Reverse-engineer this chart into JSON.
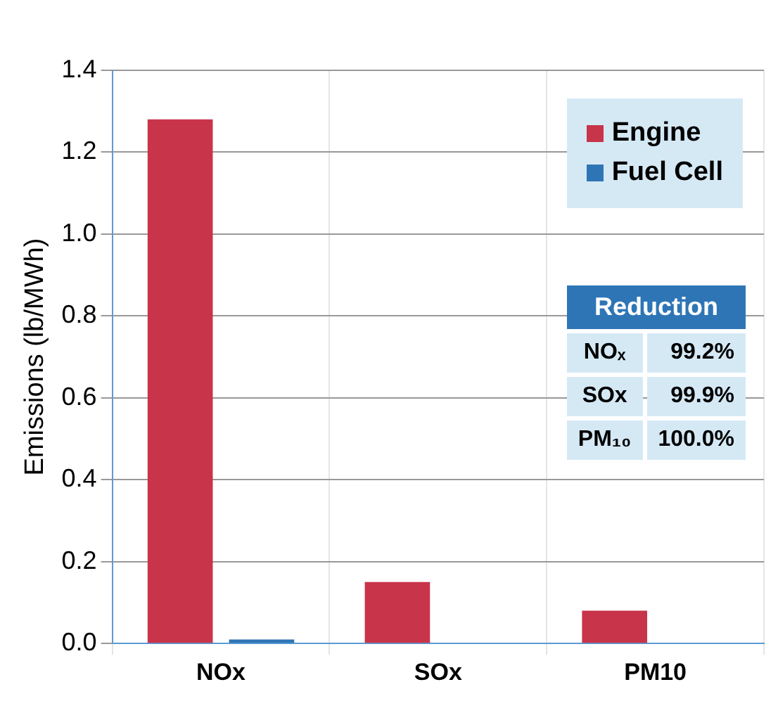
{
  "chart_data": {
    "type": "bar",
    "ylabel": "Emissions (lb/MWh)",
    "categories": [
      "NOx",
      "SOx",
      "PM10"
    ],
    "series": [
      {
        "name": "Engine",
        "color": "#c8344a",
        "values": [
          1.28,
          0.15,
          0.08
        ]
      },
      {
        "name": "Fuel Cell",
        "color": "#2e75b6",
        "values": [
          0.01,
          0,
          0
        ]
      }
    ],
    "ylim": [
      0,
      1.4
    ],
    "yticks": [
      {
        "value": 0,
        "label": "0.0"
      },
      {
        "value": 0.2,
        "label": "0.2"
      },
      {
        "value": 0.4,
        "label": "0.4"
      },
      {
        "value": 0.6,
        "label": "0.6"
      },
      {
        "value": 0.8,
        "label": "0.8"
      },
      {
        "value": 1,
        "label": "1.0"
      },
      {
        "value": 1.2,
        "label": "1.2"
      },
      {
        "value": 1.4,
        "label": "1.4"
      }
    ],
    "grid": true,
    "legend": "top right",
    "annotations": [
      "Reduction",
      "NOₓ",
      "99.2%",
      "SOx",
      "99.9%",
      "PM₁₀",
      "100.0%"
    ]
  }
}
